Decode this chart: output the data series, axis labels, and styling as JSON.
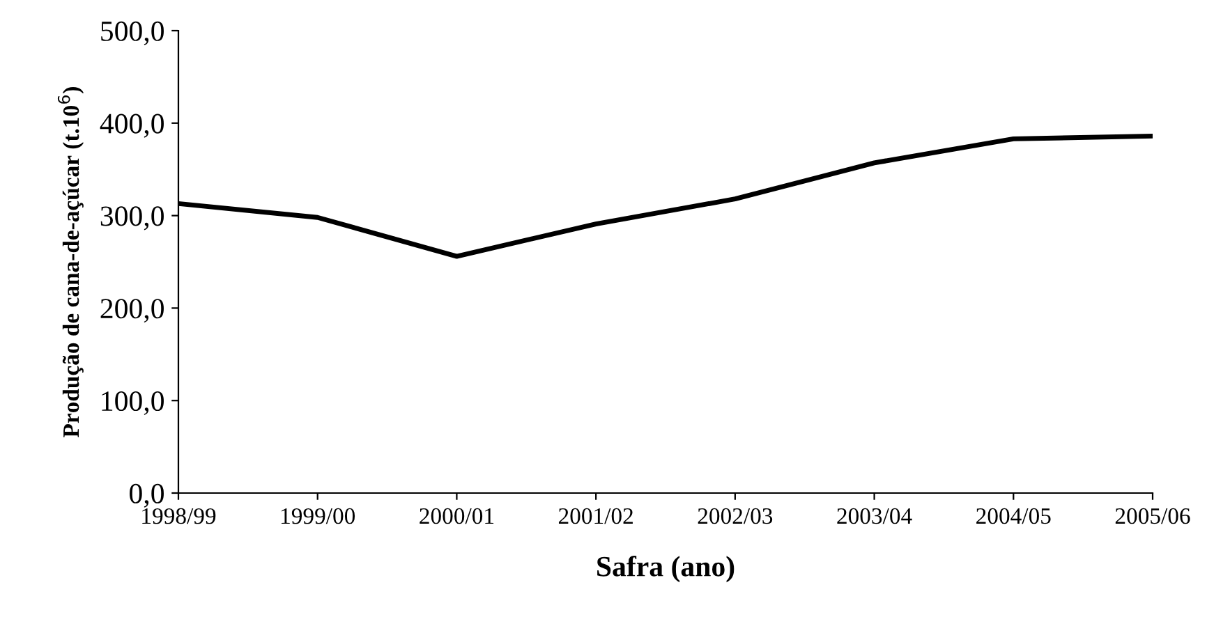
{
  "chart_data": {
    "type": "line",
    "xlabel": "Safra (ano)",
    "ylabel": "Produção de cana-de-açúcar (t.10$^{6}$)",
    "categories": [
      "1998/99",
      "1999/00",
      "2000/01",
      "2001/02",
      "2002/03",
      "2003/04",
      "2004/05",
      "2005/06"
    ],
    "series": [
      {
        "color": "#000000",
        "values": [
          313,
          298,
          256,
          291,
          318,
          357,
          383,
          386
        ]
      }
    ],
    "ylim": [
      0,
      500
    ],
    "yticks": [
      {
        "value": 0,
        "label": "0,0"
      },
      {
        "value": 100,
        "label": "100,0"
      },
      {
        "value": 200,
        "label": "200,0"
      },
      {
        "value": 300,
        "label": "300,0"
      },
      {
        "value": 400,
        "label": "400,0"
      },
      {
        "value": 500,
        "label": "500,0"
      }
    ],
    "grid": false,
    "legend": false,
    "marker": "none",
    "line_style": "solid"
  }
}
